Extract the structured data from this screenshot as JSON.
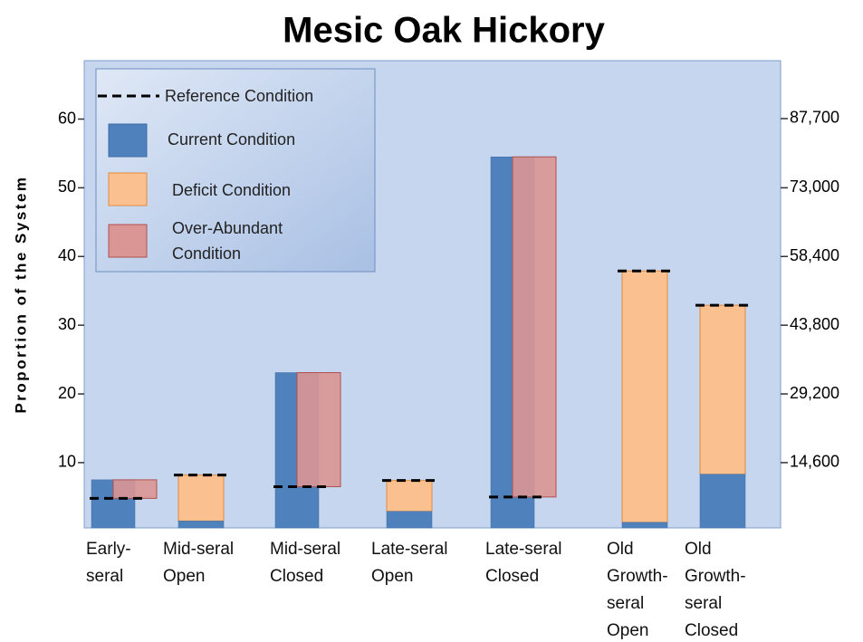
{
  "chart_data": {
    "type": "bar",
    "title": "Mesic Oak Hickory",
    "y_label": "Proportion of the System",
    "categories": [
      "Early-seral",
      "Mid-seral Open",
      "Mid-seral Closed",
      "Late-seral Open",
      "Late-seral Closed",
      "Old Growth-seral Open",
      "Old Growth-seral Closed"
    ],
    "series": [
      {
        "name": "Reference Condition",
        "color": "#000000",
        "values": [
          4.8,
          8.2,
          6.5,
          7.4,
          5.0,
          37.9,
          32.9
        ]
      },
      {
        "name": "Current Condition",
        "color": "#4f81bd",
        "values": [
          7.5,
          1.5,
          23.1,
          2.9,
          54.5,
          1.3,
          8.3
        ]
      },
      {
        "name": "Deficit Condition",
        "color": "#fbc08f",
        "values": [
          null,
          6.7,
          null,
          4.5,
          null,
          36.6,
          24.6
        ]
      },
      {
        "name": "Over-Abundant Condition",
        "color": "#d99694",
        "values": [
          2.7,
          null,
          16.6,
          null,
          49.5,
          null,
          null
        ]
      }
    ],
    "ylim": [
      0.5,
      68.5
    ],
    "yticks": [
      10,
      20,
      30,
      40,
      50,
      60
    ],
    "y2lim": [
      730,
      100010
    ],
    "y2ticks": [
      {
        "value": 14600,
        "label": "14,600"
      },
      {
        "value": 29200,
        "label": "29,200"
      },
      {
        "value": 43800,
        "label": "43,800"
      },
      {
        "value": 58400,
        "label": "58,400"
      },
      {
        "value": 73000,
        "label": "73,000"
      },
      {
        "value": 87700,
        "label": "87,700"
      }
    ],
    "legend": "upper left"
  }
}
